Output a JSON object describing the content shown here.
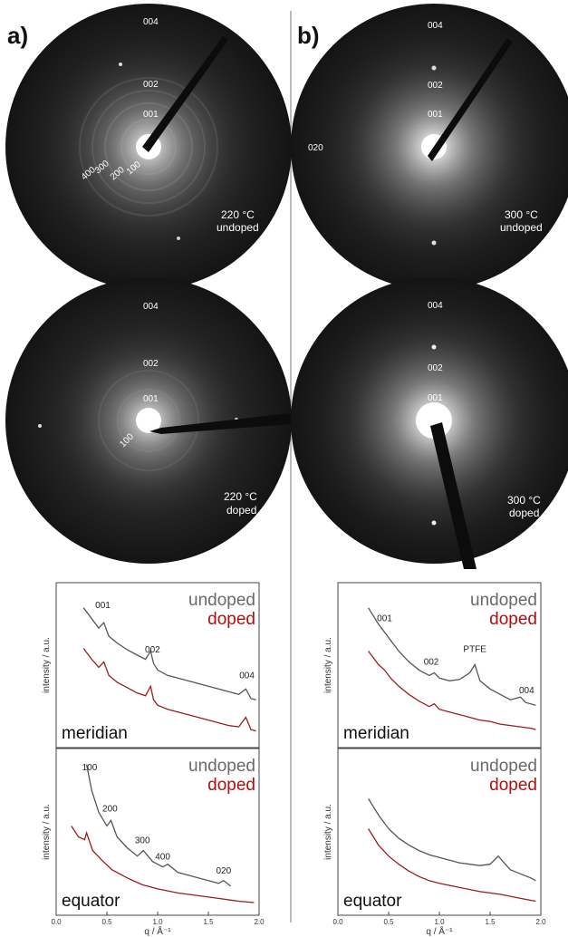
{
  "panels": {
    "a": "a)",
    "b": "b)"
  },
  "patterns": {
    "a_undoped": {
      "labels": [
        "004",
        "002",
        "001",
        "400",
        "300",
        "200",
        "100"
      ],
      "temp": "220 °C",
      "doping": "undoped"
    },
    "a_doped": {
      "labels": [
        "004",
        "002",
        "001",
        "100"
      ],
      "temp": "220 °C",
      "doping": "doped"
    },
    "b_undoped": {
      "labels": [
        "004",
        "002",
        "001",
        "020"
      ],
      "temp": "300 °C",
      "doping": "undoped"
    },
    "b_doped": {
      "labels": [
        "004",
        "002",
        "001"
      ],
      "temp": "300 °C",
      "doping": "doped"
    }
  },
  "colors": {
    "undoped": "#555555",
    "doped": "#9b1c1c",
    "legend_undoped": "#6a6a6a",
    "legend_doped": "#b01010"
  },
  "chart_data": [
    {
      "type": "line",
      "panel": "a",
      "direction": "meridian",
      "xlabel": "",
      "ylabel": "intensity / a.u.",
      "xlim": [
        0,
        2
      ],
      "series": [
        {
          "name": "undoped",
          "x": [
            0.27,
            0.35,
            0.42,
            0.47,
            0.52,
            0.6,
            0.7,
            0.8,
            0.88,
            0.93,
            0.96,
            1.0,
            1.1,
            1.2,
            1.3,
            1.4,
            1.5,
            1.6,
            1.7,
            1.8,
            1.87,
            1.92,
            1.97
          ],
          "y": [
            0.98,
            0.9,
            0.83,
            0.87,
            0.77,
            0.72,
            0.67,
            0.63,
            0.6,
            0.66,
            0.57,
            0.52,
            0.48,
            0.46,
            0.44,
            0.42,
            0.4,
            0.38,
            0.36,
            0.34,
            0.38,
            0.31,
            0.3
          ]
        },
        {
          "name": "doped",
          "x": [
            0.27,
            0.35,
            0.42,
            0.47,
            0.52,
            0.6,
            0.7,
            0.8,
            0.88,
            0.93,
            0.96,
            1.0,
            1.1,
            1.2,
            1.3,
            1.4,
            1.5,
            1.6,
            1.7,
            1.8,
            1.87,
            1.92,
            1.97
          ],
          "y": [
            0.68,
            0.6,
            0.54,
            0.58,
            0.48,
            0.43,
            0.39,
            0.35,
            0.33,
            0.4,
            0.3,
            0.26,
            0.23,
            0.21,
            0.19,
            0.17,
            0.15,
            0.13,
            0.11,
            0.1,
            0.17,
            0.08,
            0.07
          ]
        }
      ],
      "annotations": [
        "001",
        "002",
        "004"
      ],
      "legend": [
        "undoped",
        "doped"
      ],
      "name_label": "meridian"
    },
    {
      "type": "line",
      "panel": "a",
      "direction": "equator",
      "xlabel": "q / Å⁻¹",
      "ylabel": "intensity / a.u.",
      "xlim": [
        0,
        2
      ],
      "xticks": [
        "0.0",
        "0.5",
        "1.0",
        "1.5",
        "2.0"
      ],
      "series": [
        {
          "name": "undoped",
          "x": [
            0.3,
            0.35,
            0.42,
            0.5,
            0.54,
            0.6,
            0.7,
            0.8,
            0.86,
            0.95,
            1.05,
            1.1,
            1.2,
            1.3,
            1.4,
            1.5,
            1.6,
            1.65,
            1.72
          ],
          "y": [
            1.05,
            0.86,
            0.7,
            0.6,
            0.64,
            0.52,
            0.44,
            0.38,
            0.42,
            0.34,
            0.3,
            0.32,
            0.26,
            0.24,
            0.22,
            0.2,
            0.18,
            0.2,
            0.16
          ]
        },
        {
          "name": "doped",
          "x": [
            0.15,
            0.22,
            0.28,
            0.3,
            0.36,
            0.45,
            0.55,
            0.7,
            0.85,
            1.0,
            1.2,
            1.4,
            1.6,
            1.8,
            1.95
          ],
          "y": [
            0.6,
            0.52,
            0.5,
            0.55,
            0.42,
            0.35,
            0.28,
            0.22,
            0.17,
            0.14,
            0.11,
            0.09,
            0.07,
            0.05,
            0.04
          ]
        }
      ],
      "annotations": [
        "100",
        "200",
        "300",
        "400",
        "020"
      ],
      "legend": [
        "undoped",
        "doped"
      ],
      "name_label": "equator"
    },
    {
      "type": "line",
      "panel": "b",
      "direction": "meridian",
      "xlabel": "",
      "ylabel": "intensity / a.u.",
      "xlim": [
        0,
        2
      ],
      "series": [
        {
          "name": "undoped",
          "x": [
            0.3,
            0.4,
            0.46,
            0.52,
            0.6,
            0.7,
            0.8,
            0.9,
            0.95,
            1.0,
            1.1,
            1.2,
            1.3,
            1.35,
            1.4,
            1.5,
            1.6,
            1.7,
            1.8,
            1.85,
            1.95
          ],
          "y": [
            0.98,
            0.86,
            0.8,
            0.74,
            0.66,
            0.58,
            0.52,
            0.48,
            0.5,
            0.46,
            0.44,
            0.45,
            0.5,
            0.56,
            0.44,
            0.38,
            0.34,
            0.3,
            0.32,
            0.28,
            0.26
          ]
        },
        {
          "name": "doped",
          "x": [
            0.3,
            0.4,
            0.46,
            0.52,
            0.6,
            0.7,
            0.8,
            0.9,
            0.95,
            1.0,
            1.1,
            1.2,
            1.3,
            1.4,
            1.5,
            1.6,
            1.7,
            1.8,
            1.9,
            1.95
          ],
          "y": [
            0.66,
            0.56,
            0.52,
            0.46,
            0.4,
            0.34,
            0.29,
            0.25,
            0.27,
            0.23,
            0.21,
            0.19,
            0.17,
            0.15,
            0.14,
            0.12,
            0.11,
            0.1,
            0.09,
            0.08
          ]
        }
      ],
      "annotations": [
        "001",
        "002",
        "PTFE",
        "004"
      ],
      "legend": [
        "undoped",
        "doped"
      ],
      "name_label": "meridian"
    },
    {
      "type": "line",
      "panel": "b",
      "direction": "equator",
      "xlabel": "q / Å⁻¹",
      "ylabel": "intensity / a.u.",
      "xlim": [
        0,
        2
      ],
      "xticks": [
        "0.0",
        "0.5",
        "1.0",
        "1.5",
        "2.0"
      ],
      "series": [
        {
          "name": "undoped",
          "x": [
            0.3,
            0.4,
            0.5,
            0.6,
            0.7,
            0.8,
            0.9,
            1.0,
            1.1,
            1.2,
            1.3,
            1.4,
            1.5,
            1.58,
            1.65,
            1.7,
            1.8,
            1.9,
            1.95
          ],
          "y": [
            0.8,
            0.68,
            0.58,
            0.51,
            0.46,
            0.42,
            0.39,
            0.37,
            0.35,
            0.33,
            0.32,
            0.31,
            0.32,
            0.38,
            0.32,
            0.28,
            0.25,
            0.22,
            0.2
          ]
        },
        {
          "name": "doped",
          "x": [
            0.3,
            0.4,
            0.5,
            0.6,
            0.7,
            0.8,
            0.9,
            1.0,
            1.2,
            1.4,
            1.6,
            1.8,
            1.95
          ],
          "y": [
            0.58,
            0.46,
            0.38,
            0.32,
            0.27,
            0.23,
            0.2,
            0.18,
            0.15,
            0.12,
            0.1,
            0.07,
            0.05
          ]
        }
      ],
      "annotations": [],
      "legend": [
        "undoped",
        "doped"
      ],
      "name_label": "equator"
    }
  ]
}
